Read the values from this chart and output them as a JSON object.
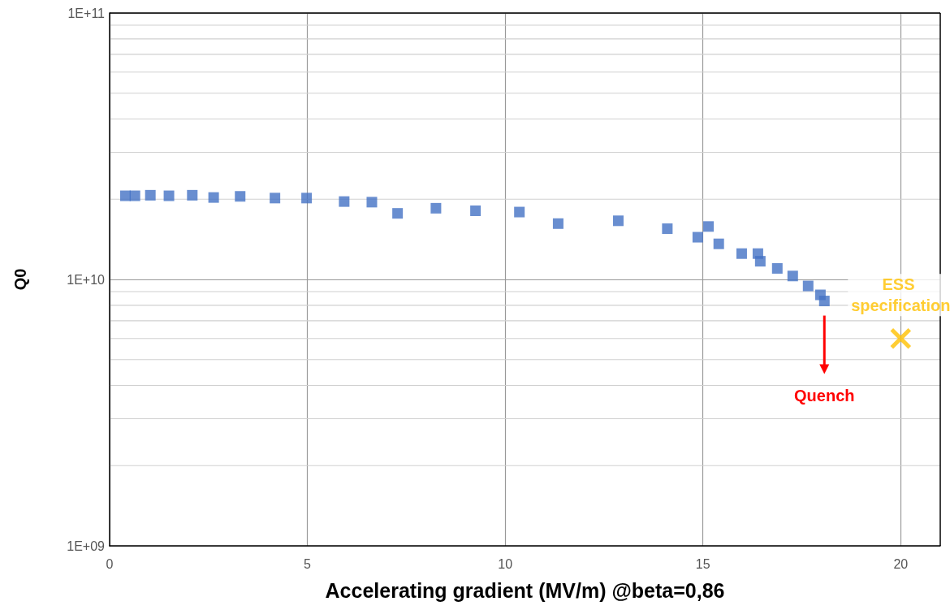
{
  "chart_data": {
    "type": "scatter",
    "xlabel": "Accelerating gradient (MV/m) @beta=0,86",
    "ylabel": "Q0",
    "xlim": [
      0,
      21
    ],
    "xticks": [
      0,
      5,
      10,
      15,
      20
    ],
    "ylim": [
      1000000000.0,
      100000000000.0
    ],
    "yticks": [
      {
        "value": 1000000000.0,
        "label": "1E+09"
      },
      {
        "value": 10000000000.0,
        "label": "1E+10"
      },
      {
        "value": 100000000000.0,
        "label": "1E+11"
      }
    ],
    "log": "y",
    "grid": true,
    "legend": false,
    "series": [
      {
        "color": "#4472c4",
        "marker": "square",
        "x": [
          0.4,
          0.64,
          1.03,
          1.5,
          2.09,
          2.63,
          3.3,
          4.18,
          4.98,
          5.93,
          6.63,
          7.28,
          8.25,
          9.25,
          10.36,
          11.34,
          12.86,
          14.1,
          14.87,
          15.14,
          15.4,
          15.98,
          16.39,
          16.45,
          16.88,
          17.27,
          17.66,
          17.97,
          18.07
        ],
        "values": [
          20600000000.0,
          20600000000.0,
          20700000000.0,
          20600000000.0,
          20700000000.0,
          20300000000.0,
          20500000000.0,
          20200000000.0,
          20200000000.0,
          19600000000.0,
          19500000000.0,
          17700000000.0,
          18500000000.0,
          18100000000.0,
          17900000000.0,
          16200000000.0,
          16600000000.0,
          15500000000.0,
          14400000000.0,
          15800000000.0,
          13600000000.0,
          12500000000.0,
          12500000000.0,
          11700000000.0,
          11000000000.0,
          10300000000.0,
          9450000000.0,
          8750000000.0,
          8300000000.0
        ]
      },
      {
        "name": "ESS specification",
        "color": "#ffc000",
        "marker": "cross",
        "x": [
          20
        ],
        "values": [
          6000000000.0
        ]
      }
    ],
    "annotations": [
      "Quench"
    ]
  }
}
